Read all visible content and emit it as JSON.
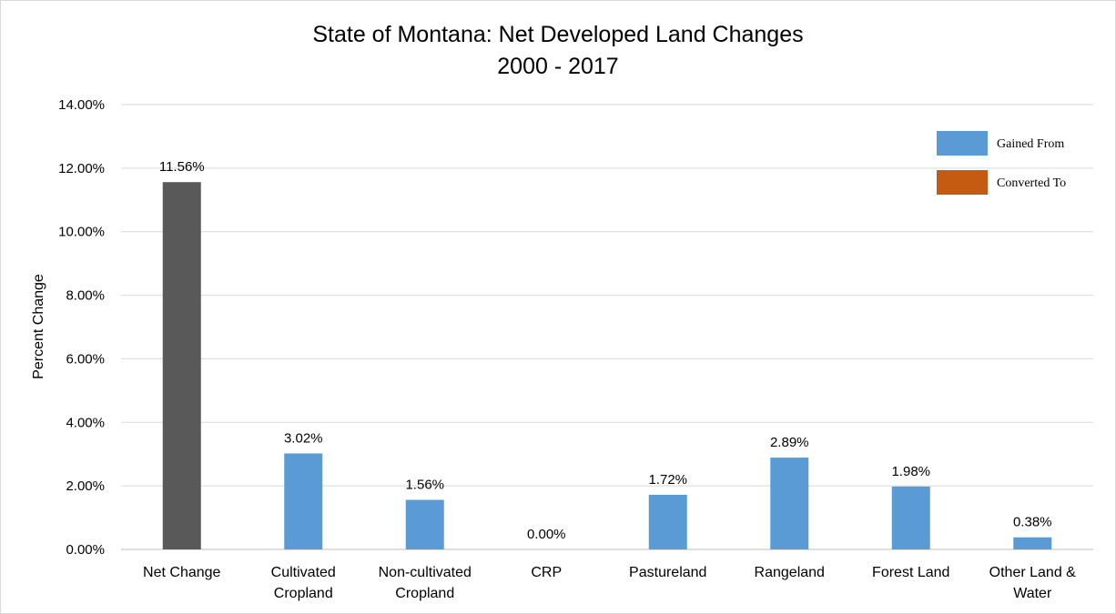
{
  "chart_data": {
    "type": "bar",
    "title": "State of Montana: Net Developed Land Changes",
    "subtitle": "2000 - 2017",
    "ylabel": "Percent Change",
    "xlabel": "",
    "ylim": [
      0,
      14
    ],
    "yticks": [
      "0.00%",
      "2.00%",
      "4.00%",
      "6.00%",
      "8.00%",
      "10.00%",
      "12.00%",
      "14.00%"
    ],
    "grid": true,
    "legend_position": "top-right",
    "categories": [
      [
        "Net Change"
      ],
      [
        "Cultivated",
        "Cropland"
      ],
      [
        "Non-cultivated",
        "Cropland"
      ],
      [
        "CRP"
      ],
      [
        "Pastureland"
      ],
      [
        "Rangeland"
      ],
      [
        "Forest Land"
      ],
      [
        "Other Land &",
        "Water"
      ]
    ],
    "values": [
      11.56,
      3.02,
      1.56,
      0.0,
      1.72,
      2.89,
      1.98,
      0.38
    ],
    "data_labels": [
      "11.56%",
      "3.02%",
      "1.56%",
      "0.00%",
      "1.72%",
      "2.89%",
      "1.98%",
      "0.38%"
    ],
    "bar_colors": [
      "#595959",
      "#5b9bd5",
      "#5b9bd5",
      "#5b9bd5",
      "#5b9bd5",
      "#5b9bd5",
      "#5b9bd5",
      "#5b9bd5"
    ],
    "legend": [
      {
        "name": "Gained From",
        "color": "#5b9bd5"
      },
      {
        "name": "Converted To",
        "color": "#c55a11"
      }
    ]
  }
}
